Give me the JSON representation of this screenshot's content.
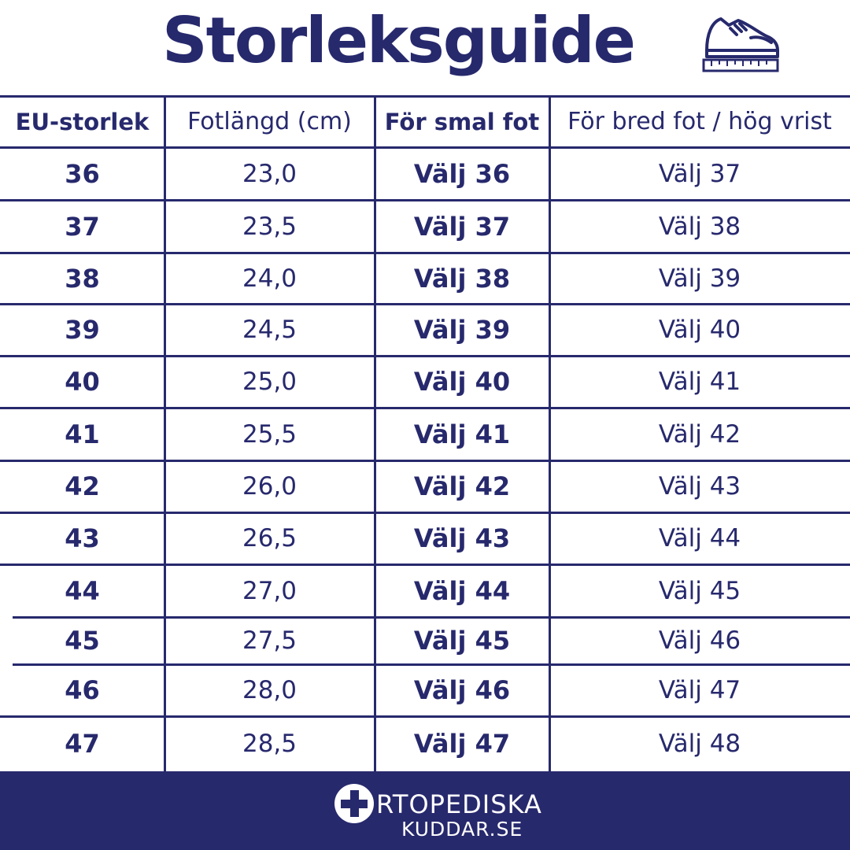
{
  "title": "Storleksguide",
  "icons": {
    "title_icon": "shoe-with-ruler-icon",
    "logo_icon": "medical-cross-icon"
  },
  "colors": {
    "primary": "#27296d",
    "background": "#ffffff",
    "footer_text": "#ffffff"
  },
  "table": {
    "headers": [
      "EU-storlek",
      "Fotlängd (cm)",
      "För smal fot",
      "För bred fot / hög vrist"
    ],
    "rows": [
      [
        "36",
        "23,0",
        "Välj 36",
        "Välj 37"
      ],
      [
        "37",
        "23,5",
        "Välj 37",
        "Välj 38"
      ],
      [
        "38",
        "24,0",
        "Välj 38",
        "Välj 39"
      ],
      [
        "39",
        "24,5",
        "Välj 39",
        "Välj 40"
      ],
      [
        "40",
        "25,0",
        "Välj 40",
        "Välj 41"
      ],
      [
        "41",
        "25,5",
        "Välj 41",
        "Välj 42"
      ],
      [
        "42",
        "26,0",
        "Välj 42",
        "Välj 43"
      ],
      [
        "43",
        "26,5",
        "Välj 43",
        "Välj 44"
      ],
      [
        "44",
        "27,0",
        "Välj 44",
        "Välj 45"
      ],
      [
        "45",
        "27,5",
        "Välj 45",
        "Välj 46"
      ],
      [
        "46",
        "28,0",
        "Välj 46",
        "Välj 47"
      ],
      [
        "47",
        "28,5",
        "Välj 47",
        "Välj 48"
      ]
    ]
  },
  "footer": {
    "logo_line1": "RTOPEDISKA",
    "logo_line2": "KUDDAR.SE"
  }
}
